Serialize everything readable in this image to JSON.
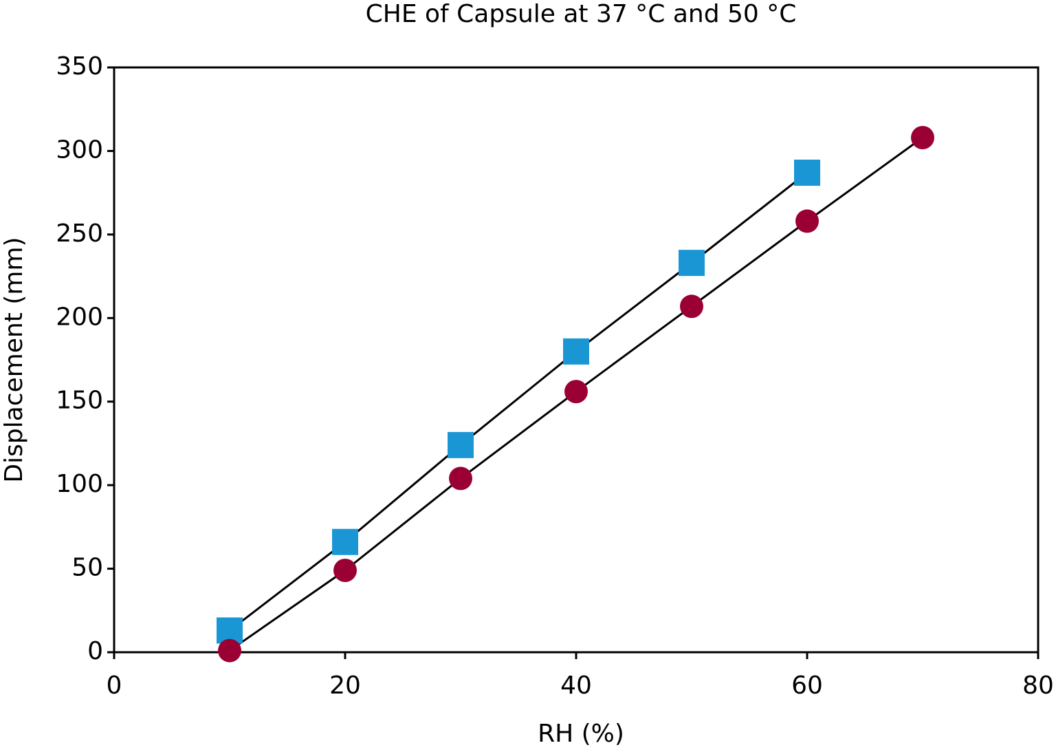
{
  "chart_data": {
    "type": "scatter",
    "title": "CHE of Capsule at 37 °C and 50 °C",
    "xlabel": "RH (%)",
    "ylabel": "Displacement (mm)",
    "xlim": [
      0,
      80
    ],
    "xticks": [
      0,
      20,
      40,
      60,
      80
    ],
    "ylim": [
      0,
      350
    ],
    "yticks": [
      0,
      50,
      100,
      150,
      200,
      250,
      300,
      350
    ],
    "grid": false,
    "series": [
      {
        "color": "#1a96d4",
        "marker": "square",
        "line_color": "#000000",
        "x": [
          10,
          20,
          30,
          40,
          50,
          60
        ],
        "values": [
          13,
          66,
          124,
          180,
          233,
          287
        ]
      },
      {
        "color": "#9b0034",
        "marker": "circle",
        "line_color": "#000000",
        "x": [
          10,
          20,
          30,
          40,
          50,
          60,
          70
        ],
        "values": [
          1,
          49,
          104,
          156,
          207,
          258,
          308
        ]
      }
    ]
  }
}
